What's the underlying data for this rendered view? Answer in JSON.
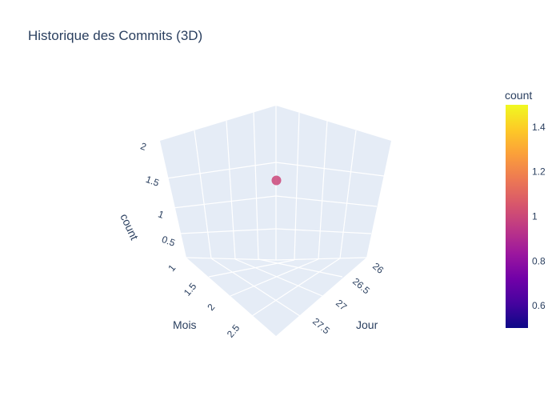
{
  "chart_data": {
    "type": "scatter3d",
    "title": "Historique des Commits (3D)",
    "x_axis": {
      "title": "Jour",
      "ticks": [
        "26",
        "26.5",
        "27",
        "27.5"
      ]
    },
    "y_axis": {
      "title": "Mois",
      "ticks": [
        "1",
        "1.5",
        "2",
        "2.5"
      ]
    },
    "z_axis": {
      "title": "count",
      "ticks": [
        "0.5",
        "1",
        "1.5",
        "2"
      ]
    },
    "points": [
      {
        "x": 27,
        "y": 2,
        "z": 1,
        "count": 1
      }
    ],
    "colorbar": {
      "title": "count",
      "ticks": [
        "0.6",
        "0.8",
        "1",
        "1.2",
        "1.4"
      ],
      "range": [
        0.5,
        1.5
      ],
      "colorscale": [
        "#0d0887",
        "#46039f",
        "#7201a8",
        "#9c179e",
        "#bd3786",
        "#d8576b",
        "#ed7953",
        "#fb9f3a",
        "#fdca26",
        "#f0f921"
      ]
    }
  }
}
